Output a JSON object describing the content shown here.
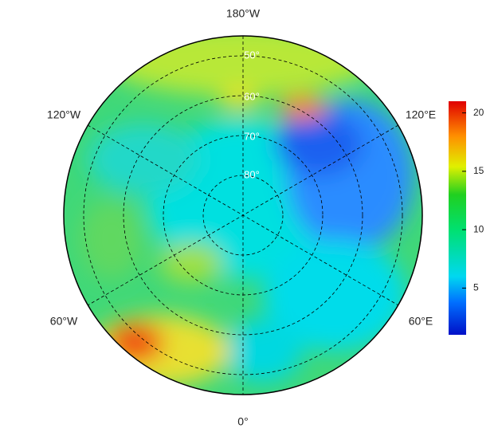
{
  "map": {
    "longitude_labels": [
      "180°W",
      "120°W",
      "120°E",
      "60°W",
      "60°E",
      "0°"
    ],
    "latitude_labels": [
      "50°",
      "60°",
      "70°",
      "80°"
    ],
    "colorbar": {
      "lim": [
        1,
        21
      ],
      "ticks": [
        5,
        10,
        15,
        20
      ]
    }
  }
}
